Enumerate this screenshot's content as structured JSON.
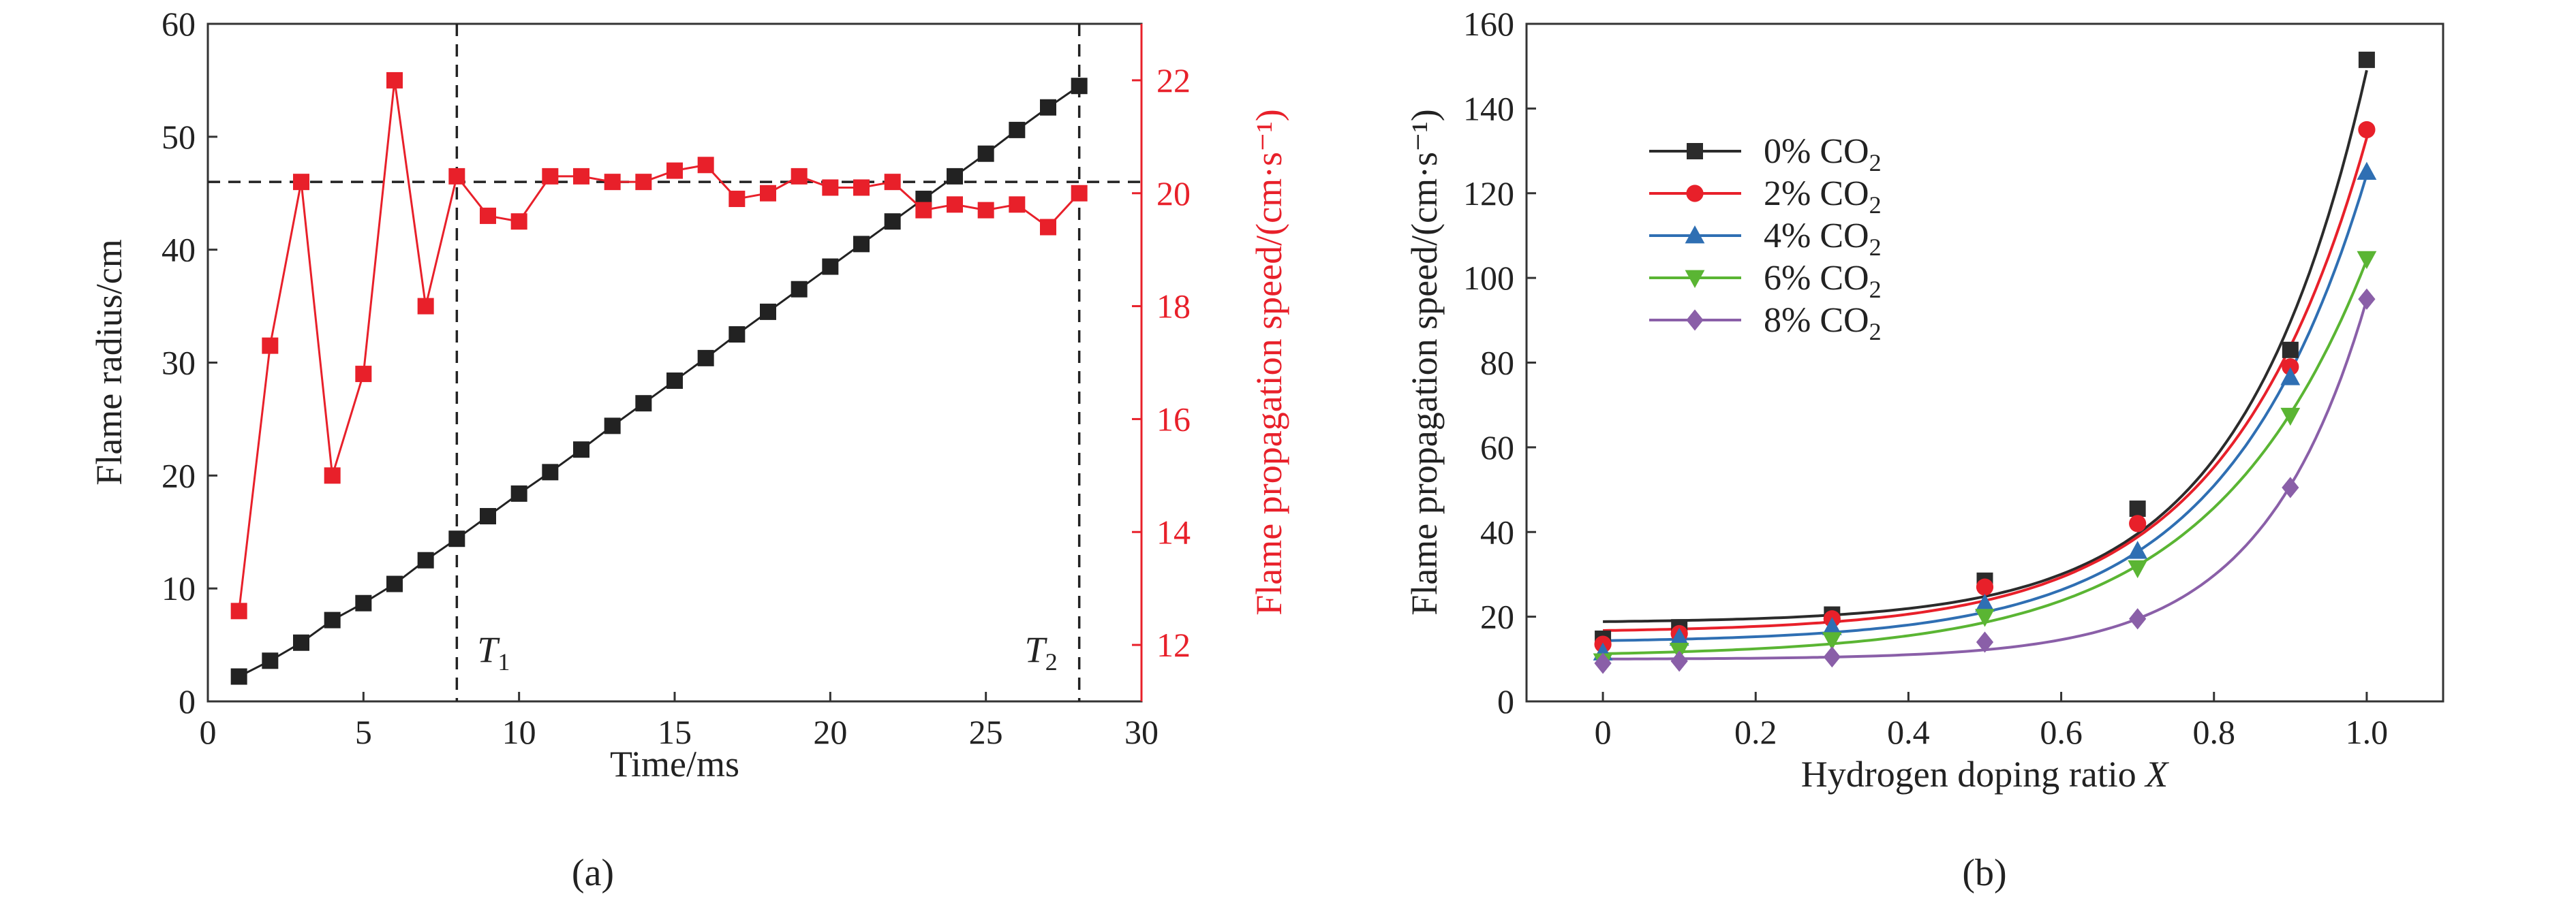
{
  "chart_data": [
    {
      "type": "line",
      "panel_label": "(a)",
      "xlabel": "Time/ms",
      "ylabel": "Flame radius/cm",
      "y2label": "Flame propagation speed/(cm·s⁻¹)",
      "xlim": [
        0,
        30
      ],
      "ylim": [
        0,
        60
      ],
      "y2lim": [
        11,
        23
      ],
      "xticks": [
        "0",
        "5",
        "10",
        "15",
        "20",
        "25",
        "30"
      ],
      "yticks": [
        "0",
        "10",
        "20",
        "30",
        "40",
        "50",
        "60"
      ],
      "y2ticks": [
        "12",
        "14",
        "16",
        "18",
        "20",
        "22"
      ],
      "annotations": {
        "t1_label": "T",
        "t1_sub": "1",
        "t2_label": "T",
        "t2_sub": "2",
        "t1_x": 8,
        "t2_x": 28,
        "hline_y2": 20.2
      },
      "series": [
        {
          "axis": "left",
          "color": "#222222",
          "marker": "square",
          "x": [
            1,
            2,
            3,
            4,
            5,
            6,
            7,
            8,
            9,
            10,
            11,
            12,
            13,
            14,
            15,
            16,
            17,
            18,
            19,
            20,
            21,
            22,
            23,
            24,
            25,
            26,
            27,
            28
          ],
          "values": [
            2.2,
            3.6,
            5.2,
            7.2,
            8.7,
            10.4,
            12.5,
            14.4,
            16.4,
            18.4,
            20.3,
            22.3,
            24.4,
            26.4,
            28.4,
            30.4,
            32.5,
            34.5,
            36.5,
            38.5,
            40.5,
            42.5,
            44.5,
            46.5,
            48.5,
            50.6,
            52.6,
            54.5
          ]
        },
        {
          "axis": "right",
          "color": "#e8202a",
          "marker": "square",
          "x": [
            1,
            2,
            3,
            4,
            5,
            6,
            7,
            8,
            9,
            10,
            11,
            12,
            13,
            14,
            15,
            16,
            17,
            18,
            19,
            20,
            21,
            22,
            23,
            24,
            25,
            26,
            27,
            28
          ],
          "values": [
            12.6,
            17.3,
            20.2,
            15.0,
            16.8,
            22.0,
            18.0,
            20.3,
            19.6,
            19.5,
            20.3,
            20.3,
            20.2,
            20.2,
            20.4,
            20.5,
            19.9,
            20.0,
            20.3,
            20.1,
            20.1,
            20.2,
            19.7,
            19.8,
            19.7,
            19.8,
            19.4,
            20.0
          ]
        }
      ]
    },
    {
      "type": "scatter",
      "panel_label": "(b)",
      "xlabel": "Hydrogen doping ratio ",
      "xlabel_var": "X",
      "ylabel": "Flame propagation speed/(cm·s⁻¹)",
      "xlim": [
        -0.1,
        1.1
      ],
      "ylim": [
        0,
        160
      ],
      "xticks": [
        "0",
        "0.2",
        "0.4",
        "0.6",
        "0.8",
        "1.0"
      ],
      "yticks": [
        "0",
        "20",
        "40",
        "60",
        "80",
        "100",
        "120",
        "140",
        "160"
      ],
      "legend_position": "top-left",
      "x": [
        0,
        0.1,
        0.3,
        0.5,
        0.7,
        0.9,
        1.0
      ],
      "series": [
        {
          "name": "0% CO",
          "sub": "2",
          "color": "#2b2b2b",
          "marker": "square",
          "values": [
            14.8,
            17.5,
            20.5,
            28.5,
            45.5,
            83.0,
            151.5
          ]
        },
        {
          "name": "2% CO",
          "sub": "2",
          "color": "#e8202a",
          "marker": "circle",
          "values": [
            13.5,
            16.0,
            19.5,
            27.0,
            42.0,
            79.0,
            135.0
          ]
        },
        {
          "name": "4% CO",
          "sub": "2",
          "color": "#2f6fb3",
          "marker": "triangle",
          "values": [
            11.5,
            15.0,
            17.5,
            23.0,
            35.5,
            76.5,
            125.0
          ]
        },
        {
          "name": "6% CO",
          "sub": "2",
          "color": "#5ab533",
          "marker": "tri-down",
          "values": [
            9.5,
            12.0,
            14.5,
            20.0,
            31.5,
            67.5,
            104.5
          ]
        },
        {
          "name": "8% CO",
          "sub": "2",
          "color": "#8a5fa8",
          "marker": "diamond",
          "values": [
            9.0,
            9.5,
            10.5,
            14.0,
            19.5,
            50.5,
            95.0
          ]
        }
      ]
    }
  ]
}
